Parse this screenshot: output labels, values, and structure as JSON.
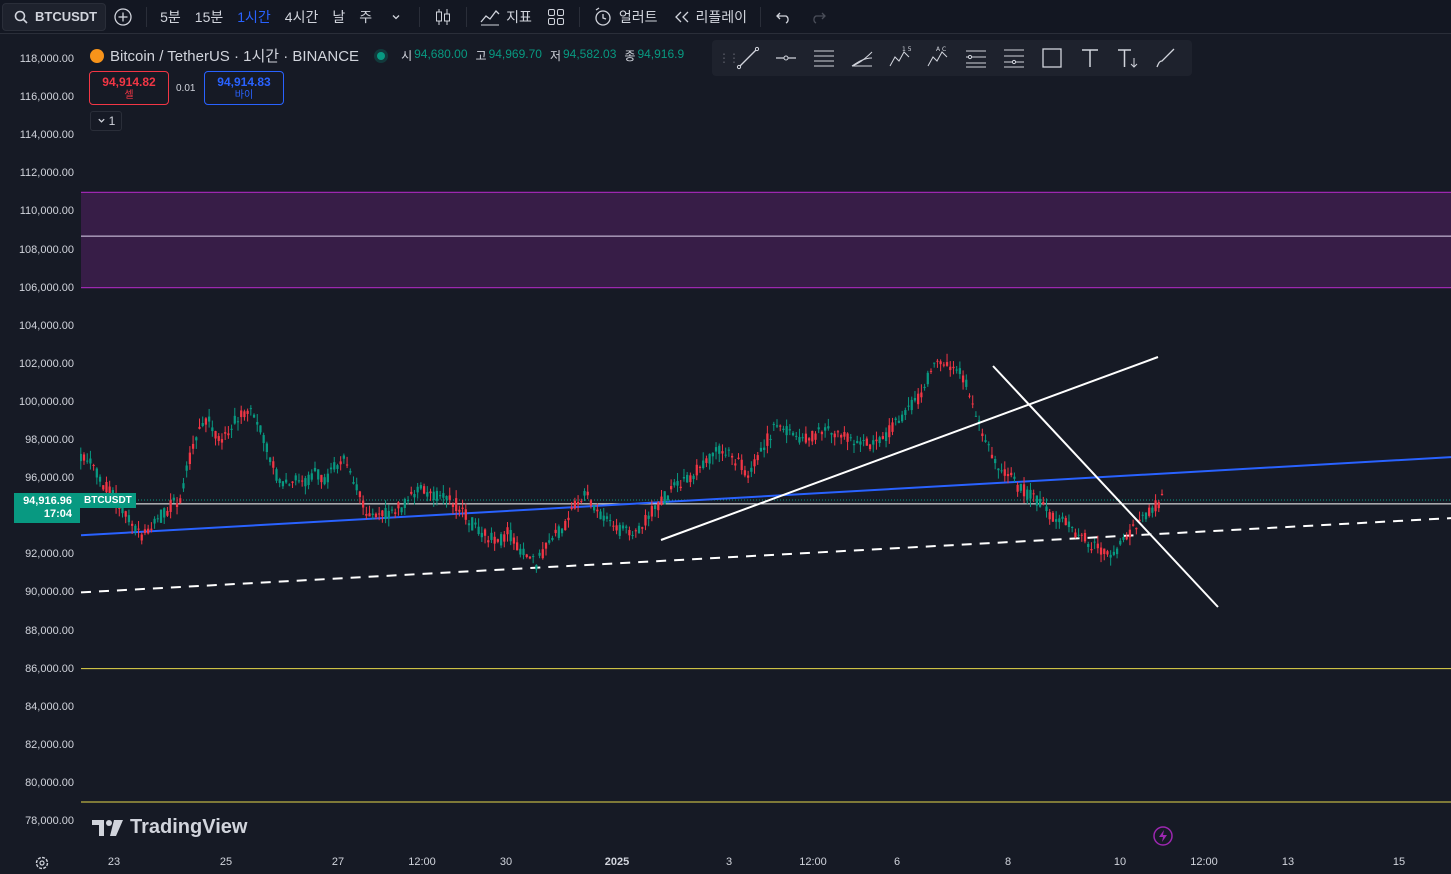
{
  "toolbar": {
    "symbol": "BTCUSDT",
    "intervals": [
      "5분",
      "15분",
      "1시간",
      "4시간",
      "날",
      "주"
    ],
    "active_interval": "1시간",
    "indicators_label": "지표",
    "alert_label": "얼러트",
    "replay_label": "리플레이"
  },
  "legend": {
    "title": "Bitcoin / TetherUS · 1시간 · BINANCE",
    "open_label": "시",
    "open": "94,680.00",
    "high_label": "고",
    "high": "94,969.70",
    "low_label": "저",
    "low": "94,582.03",
    "close_label": "종",
    "close": "94,916.9"
  },
  "trade": {
    "sell_price": "94,914.82",
    "sell_label": "셀",
    "buy_price": "94,914.83",
    "buy_label": "바이",
    "spread": "0.01",
    "lot": "1"
  },
  "current_price": {
    "price": "94,916.96",
    "countdown": "17:04",
    "tag": "BTCUSDT"
  },
  "price_axis": [
    "118,000.00",
    "116,000.00",
    "114,000.00",
    "112,000.00",
    "110,000.00",
    "108,000.00",
    "106,000.00",
    "104,000.00",
    "102,000.00",
    "100,000.00",
    "98,000.00",
    "96,000.00",
    "94,000.00",
    "92,000.00",
    "90,000.00",
    "88,000.00",
    "86,000.00",
    "84,000.00",
    "82,000.00",
    "80,000.00",
    "78,000.00"
  ],
  "time_axis": [
    "23",
    "25",
    "27",
    "12:00",
    "30",
    "2025",
    "3",
    "12:00",
    "6",
    "8",
    "10",
    "12:00",
    "13",
    "15"
  ],
  "logo_text": "TradingView",
  "colors": {
    "bg": "#161a25",
    "up": "#089981",
    "down": "#f23645",
    "accent": "#2962ff",
    "zone": "#9c27b0"
  },
  "chart_data": {
    "type": "candlestick",
    "ylim": [
      77000,
      119000
    ],
    "zone": [
      106000,
      111000
    ],
    "zone_mid": 108700,
    "hlines": [
      86000,
      79000,
      94650
    ],
    "trend_blue": [
      [
        0,
        93000
      ],
      [
        1,
        97100
      ]
    ],
    "trend_dashed": [
      [
        0,
        90000
      ],
      [
        1,
        93900
      ]
    ],
    "close_series": [
      97200,
      96600,
      95600,
      95200,
      94200,
      93500,
      93000,
      93600,
      94000,
      94500,
      95000,
      97000,
      98500,
      99000,
      98000,
      98600,
      99200,
      99600,
      99000,
      97600,
      96200,
      95700,
      96000,
      95800,
      96300,
      95900,
      96500,
      97300,
      95800,
      94600,
      93900,
      94000,
      94300,
      94500,
      95000,
      95300,
      95200,
      95100,
      94800,
      94500,
      93800,
      93200,
      92900,
      92600,
      93200,
      92400,
      91800,
      91500,
      92300,
      93000,
      93600,
      94500,
      95200,
      94600,
      93800,
      93500,
      93200,
      93000,
      93500,
      94200,
      94800,
      95300,
      95800,
      96100,
      96500,
      97000,
      97500,
      97200,
      96800,
      96300,
      97000,
      98000,
      98800,
      98400,
      98200,
      98100,
      98300,
      98600,
      98400,
      98300,
      98000,
      97800,
      97700,
      98100,
      98600,
      99200,
      99900,
      100200,
      101800,
      102200,
      102000,
      101500,
      100500,
      99000,
      97500,
      96600,
      96200,
      95600,
      95200,
      94800,
      94300,
      93900,
      93600,
      93200,
      92800,
      92400,
      92000,
      91900,
      92600,
      93300,
      93800,
      94300,
      94900
    ]
  }
}
